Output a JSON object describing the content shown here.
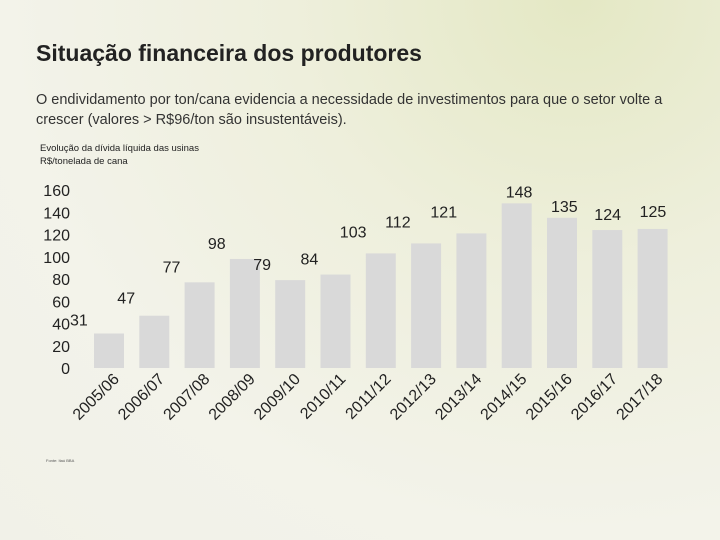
{
  "slide": {
    "title": "Situação financeira dos produtores",
    "subtitle": "O endividamento por ton/cana evidencia a necessidade de investimentos para que o setor volte a crescer (valores > R$96/ton são insustentáveis).",
    "source": "Fonte: Itaú BBA"
  },
  "chart_data": {
    "type": "bar",
    "title_line1": "Evolução da dívida líquida das usinas",
    "title_line2": "R$/tonelada de cana",
    "categories": [
      "2005/06",
      "2006/07",
      "2007/08",
      "2008/09",
      "2009/10",
      "2010/11",
      "2011/12",
      "2012/13",
      "2013/14",
      "2014/15",
      "2015/16",
      "2016/17",
      "2017/18"
    ],
    "values": [
      31,
      47,
      77,
      98,
      79,
      84,
      103,
      112,
      121,
      148,
      135,
      124,
      125
    ],
    "data_labels": [
      "31",
      "47",
      "77",
      "98",
      "79",
      "84",
      "103",
      "112",
      "121",
      "148",
      "135",
      "124",
      "125"
    ],
    "y_ticks": [
      "0",
      "20",
      "40",
      "60",
      "80",
      "100",
      "120",
      "140",
      "160"
    ],
    "ylim": [
      0,
      160
    ],
    "bar_color": "#d9d9d9",
    "grid": false,
    "legend": "none"
  }
}
